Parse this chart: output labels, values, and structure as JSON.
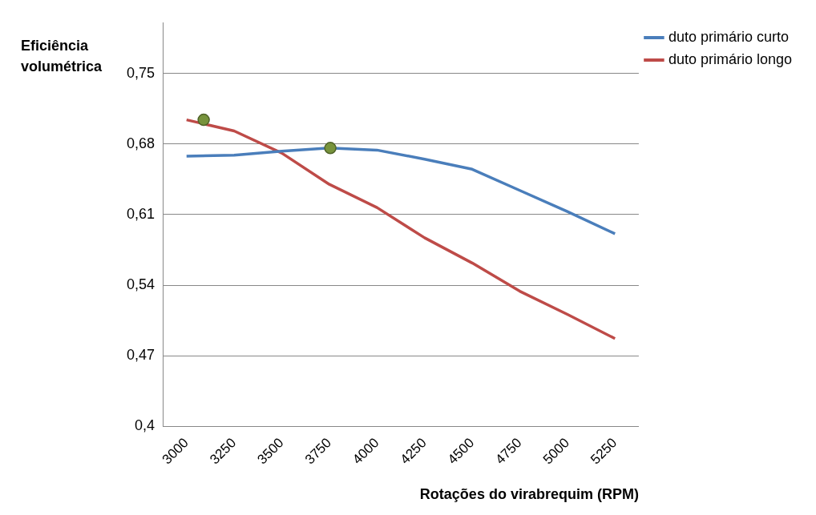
{
  "chart_data": {
    "type": "line",
    "xlabel": "Rotações do virabrequim (RPM)",
    "ylabel": "Eficiência volumétrica",
    "xlim": [
      2875,
      5375
    ],
    "xticks": [
      3000,
      3250,
      3500,
      3750,
      4000,
      4250,
      4500,
      4750,
      5000,
      5250
    ],
    "ylim": [
      0.4,
      0.8
    ],
    "yticks": [
      {
        "value": 0.4,
        "label": "0,4"
      },
      {
        "value": 0.47,
        "label": "0,47"
      },
      {
        "value": 0.54,
        "label": "0,54"
      },
      {
        "value": 0.61,
        "label": "0,61"
      },
      {
        "value": 0.68,
        "label": "0,68"
      },
      {
        "value": 0.75,
        "label": "0,75"
      }
    ],
    "grid": "y",
    "legend": "top right",
    "marker": "none",
    "line_style": "solid",
    "series": [
      {
        "name": "duto primário curto",
        "color": "#4a7ebb",
        "x": [
          3000,
          3250,
          3500,
          3750,
          4000,
          4250,
          4500,
          4750,
          5000,
          5250
        ],
        "values": [
          0.668,
          0.669,
          0.673,
          0.676,
          0.674,
          0.665,
          0.655,
          0.634,
          0.613,
          0.591
        ]
      },
      {
        "name": "duto primário longo",
        "color": "#be4b48",
        "x": [
          3000,
          3250,
          3500,
          3750,
          4000,
          4250,
          4500,
          4750,
          5000,
          5250
        ],
        "values": [
          0.704,
          0.693,
          0.671,
          0.64,
          0.617,
          0.587,
          0.562,
          0.534,
          0.511,
          0.487
        ]
      },
      {
        "type": "scatter",
        "marker": "circle",
        "color": "#77933c",
        "x": [
          3090,
          3755
        ],
        "values": [
          0.704,
          0.676
        ]
      }
    ]
  }
}
